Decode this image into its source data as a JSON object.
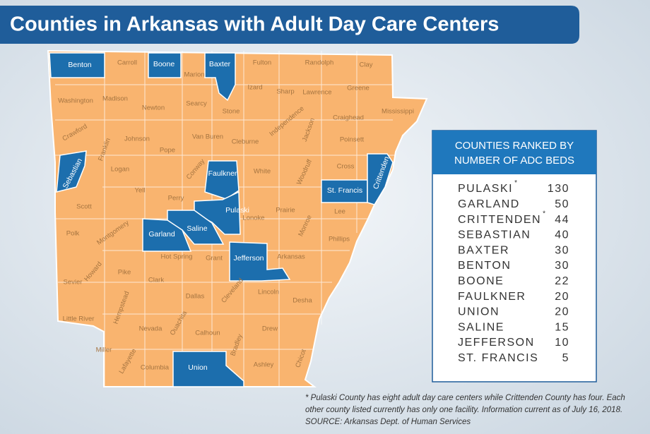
{
  "title": "Counties in Arkansas with Adult Day Care Centers",
  "map": {
    "highlighted_counties": [
      "Benton",
      "Boone",
      "Baxter",
      "Sebastian",
      "Faulkner",
      "St. Francis",
      "Crittenden",
      "Pulaski",
      "Saline",
      "Garland",
      "Jefferson",
      "Union"
    ],
    "other_counties": [
      "Carroll",
      "Marion",
      "Fulton",
      "Randolph",
      "Clay",
      "Izard",
      "Sharp",
      "Lawrence",
      "Greene",
      "Washington",
      "Madison",
      "Newton",
      "Searcy",
      "Stone",
      "Independence",
      "Craighead",
      "Mississippi",
      "Crawford",
      "Franklin",
      "Johnson",
      "Van Buren",
      "Cleburne",
      "Jackson",
      "Poinsett",
      "Logan",
      "Pope",
      "Conway",
      "White",
      "Woodruff",
      "Cross",
      "Yell",
      "Perry",
      "Scott",
      "Prairie",
      "Lee",
      "Lonoke",
      "Monroe",
      "Polk",
      "Montgomery",
      "Phillips",
      "Hot Spring",
      "Grant",
      "Arkansas",
      "Howard",
      "Pike",
      "Sevier",
      "Clark",
      "Dallas",
      "Cleveland",
      "Lincoln",
      "Desha",
      "Hempstead",
      "Little River",
      "Nevada",
      "Ouachita",
      "Calhoun",
      "Drew",
      "Bradley",
      "Miller",
      "Lafayette",
      "Columbia",
      "Ashley",
      "Chicot"
    ]
  },
  "table": {
    "title": [
      "COUNTIES RANKED BY",
      "NUMBER OF ADC BEDS"
    ],
    "rows": [
      {
        "county": "PULASKI",
        "note": "*",
        "beds": 130
      },
      {
        "county": "GARLAND",
        "beds": 50
      },
      {
        "county": "CRITTENDEN",
        "note": "*",
        "beds": 44
      },
      {
        "county": "SEBASTIAN",
        "beds": 40
      },
      {
        "county": "BAXTER",
        "beds": 30
      },
      {
        "county": "BENTON",
        "beds": 30
      },
      {
        "county": "BOONE",
        "beds": 22
      },
      {
        "county": "FAULKNER",
        "beds": 20
      },
      {
        "county": "UNION",
        "beds": 20
      },
      {
        "county": "SALINE",
        "beds": 15
      },
      {
        "county": "JEFFERSON",
        "beds": 10
      },
      {
        "county": "ST. FRANCIS",
        "beds": 5
      }
    ]
  },
  "footnote": [
    "* Pulaski County has eight adult day care centers while Crittenden County has four. Each",
    "other county listed currently has only one facility. Information current as of July 16, 2018.",
    "SOURCE: Arkansas Dept. of Human Services"
  ]
}
